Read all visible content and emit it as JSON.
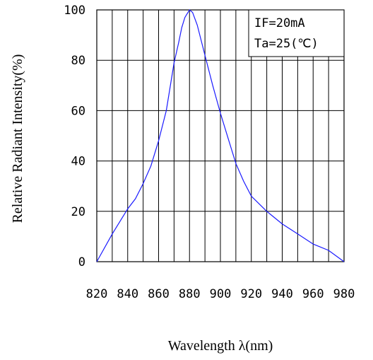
{
  "chart_data": {
    "type": "line",
    "title": "",
    "xlabel": "Wavelength λ(nm)",
    "ylabel": "Relative Radiant Intensity(%)",
    "xlim": [
      820,
      980
    ],
    "ylim": [
      0,
      100
    ],
    "grid": true,
    "x_ticks": [
      "820",
      "840",
      "860",
      "880",
      "900",
      "920",
      "940",
      "960",
      "980"
    ],
    "y_ticks": [
      "0",
      "20",
      "40",
      "60",
      "80",
      "100"
    ],
    "annotations": [
      "IF=20mA",
      "Ta=25(℃)"
    ],
    "series": [
      {
        "color": "#1a1aff",
        "x": [
          820,
          830,
          840,
          845,
          850,
          855,
          860,
          865,
          870,
          873,
          875,
          877,
          878,
          880,
          882,
          885,
          890,
          895,
          900,
          905,
          910,
          915,
          920,
          930,
          940,
          950,
          960,
          970,
          980
        ],
        "y": [
          0,
          11,
          21,
          25,
          31,
          38,
          48,
          60,
          79,
          87,
          93,
          97,
          98,
          100,
          99,
          94,
          82,
          70,
          59,
          49,
          39,
          32,
          26,
          20,
          15,
          11,
          7,
          4.5,
          0
        ]
      }
    ]
  }
}
